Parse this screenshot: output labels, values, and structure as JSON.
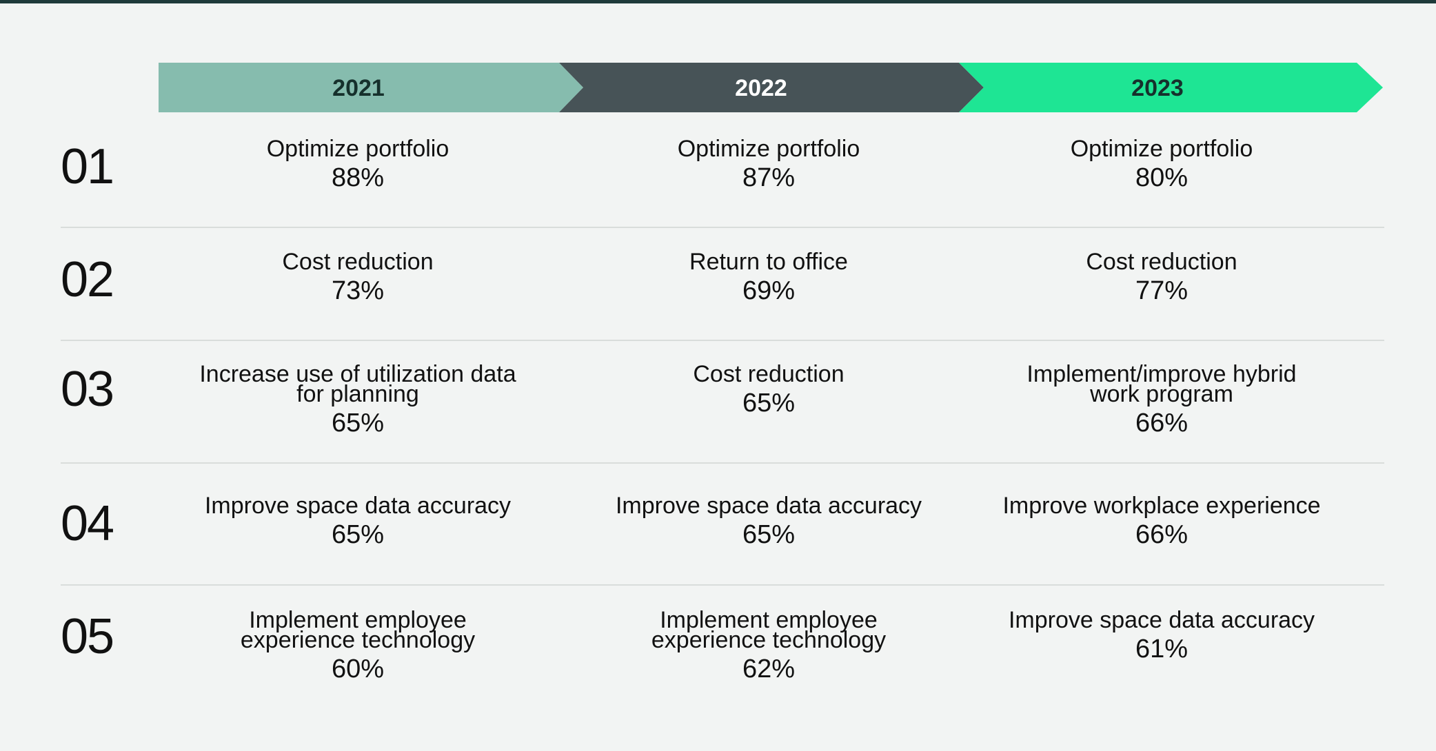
{
  "years": [
    {
      "label": "2021",
      "color": "#86bcae",
      "text_color": "#16302c"
    },
    {
      "label": "2022",
      "color": "#475357",
      "text_color": "#ffffff"
    },
    {
      "label": "2023",
      "color": "#1ee594",
      "text_color": "#16302c"
    }
  ],
  "rows": [
    {
      "rank": "01",
      "cells": [
        {
          "label": "Optimize portfolio",
          "pct": "88%"
        },
        {
          "label": "Optimize portfolio",
          "pct": "87%"
        },
        {
          "label": "Optimize portfolio",
          "pct": "80%"
        }
      ]
    },
    {
      "rank": "02",
      "cells": [
        {
          "label": "Cost reduction",
          "pct": "73%"
        },
        {
          "label": "Return to office",
          "pct": "69%"
        },
        {
          "label": "Cost reduction",
          "pct": "77%"
        }
      ]
    },
    {
      "rank": "03",
      "cells": [
        {
          "label": "Increase use of utilization data for planning",
          "pct": "65%"
        },
        {
          "label": "Cost reduction",
          "pct": "65%"
        },
        {
          "label": "Implement/improve hybrid work program",
          "pct": "66%"
        }
      ]
    },
    {
      "rank": "04",
      "cells": [
        {
          "label": "Improve space data accuracy",
          "pct": "65%"
        },
        {
          "label": "Improve space data accuracy",
          "pct": "65%"
        },
        {
          "label": "Improve workplace experience",
          "pct": "66%"
        }
      ]
    },
    {
      "rank": "05",
      "cells": [
        {
          "label": "Implement employee experience technology",
          "pct": "60%"
        },
        {
          "label": "Implement employee experience technology",
          "pct": "62%"
        },
        {
          "label": "Improve space data accuracy",
          "pct": "61%"
        }
      ]
    }
  ]
}
